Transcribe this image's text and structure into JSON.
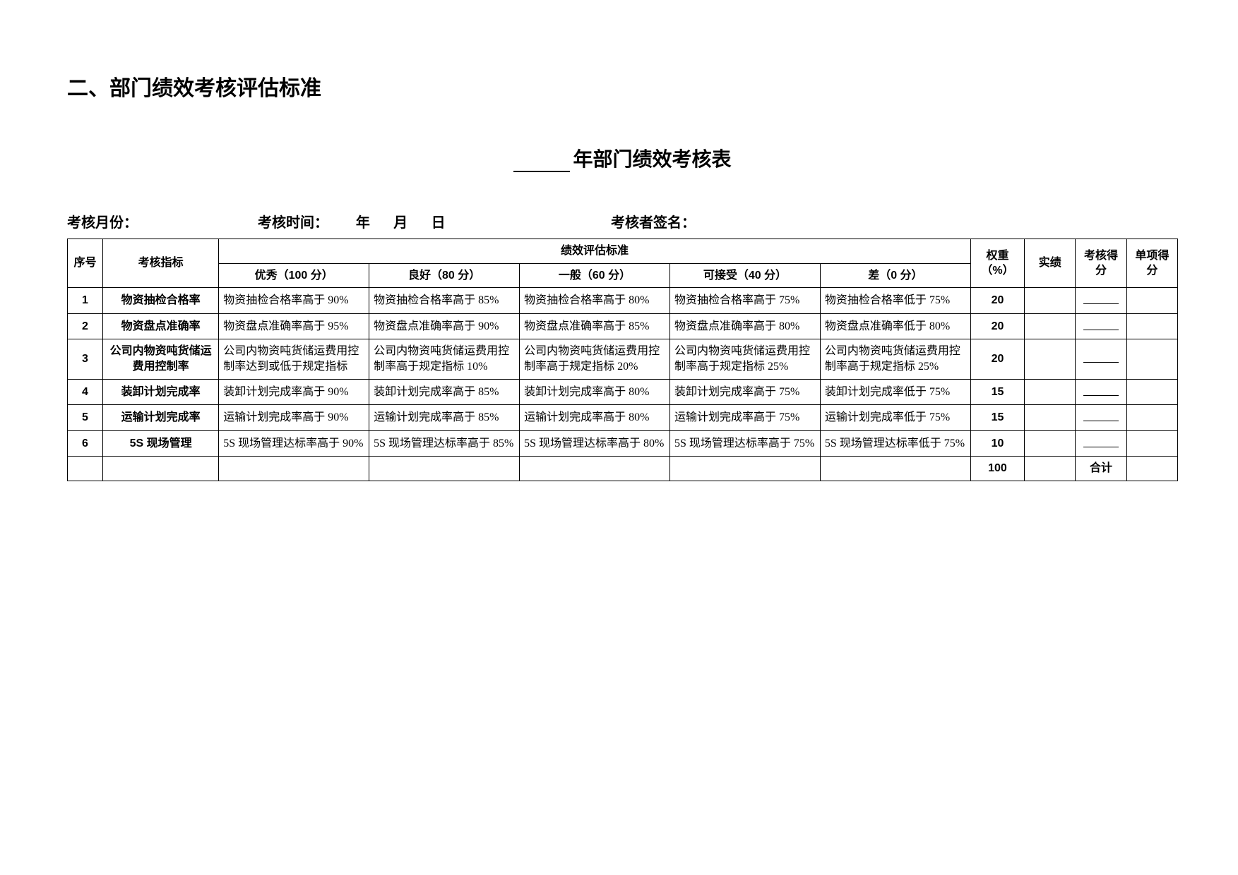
{
  "section_title": "二、部门绩效考核评估标准",
  "form_title_suffix": "年部门绩效考核表",
  "meta": {
    "month_label": "考核月份：",
    "time_label": "考核时间：",
    "year": "年",
    "month": "月",
    "day": "日",
    "signer_label": "考核者签名："
  },
  "headers": {
    "no": "序号",
    "metric": "考核指标",
    "std_group": "绩效评估标准",
    "excellent": "优秀（100 分）",
    "good": "良好（80 分）",
    "average": "一般（60 分）",
    "acceptable": "可接受（40 分）",
    "poor": "差（0 分）",
    "weight": "权重（%）",
    "actual": "实绩",
    "score": "考核得分",
    "item_score": "单项得分"
  },
  "rows": [
    {
      "no": "1",
      "metric": "物资抽检合格率",
      "excellent": "物资抽检合格率高于 90%",
      "good": "物资抽检合格率高于 85%",
      "average": "物资抽检合格率高于 80%",
      "acceptable": "物资抽检合格率高于 75%",
      "poor": "物资抽检合格率低于 75%",
      "weight": "20"
    },
    {
      "no": "2",
      "metric": "物资盘点准确率",
      "excellent": "物资盘点准确率高于 95%",
      "good": "物资盘点准确率高于 90%",
      "average": "物资盘点准确率高于 85%",
      "acceptable": "物资盘点准确率高于 80%",
      "poor": "物资盘点准确率低于 80%",
      "weight": "20"
    },
    {
      "no": "3",
      "metric": "公司内物资吨货储运费用控制率",
      "excellent": "公司内物资吨货储运费用控制率达到或低于规定指标",
      "good": "公司内物资吨货储运费用控制率高于规定指标 10%",
      "average": "公司内物资吨货储运费用控制率高于规定指标 20%",
      "acceptable": "公司内物资吨货储运费用控制率高于规定指标 25%",
      "poor": "公司内物资吨货储运费用控制率高于规定指标 25%",
      "weight": "20"
    },
    {
      "no": "4",
      "metric": "装卸计划完成率",
      "excellent": "装卸计划完成率高于 90%",
      "good": "装卸计划完成率高于 85%",
      "average": "装卸计划完成率高于 80%",
      "acceptable": "装卸计划完成率高于 75%",
      "poor": "装卸计划完成率低于 75%",
      "weight": "15"
    },
    {
      "no": "5",
      "metric": "运输计划完成率",
      "excellent": "运输计划完成率高于 90%",
      "good": "运输计划完成率高于 85%",
      "average": "运输计划完成率高于 80%",
      "acceptable": "运输计划完成率高于 75%",
      "poor": "运输计划完成率低于 75%",
      "weight": "15"
    },
    {
      "no": "6",
      "metric": "5S 现场管理",
      "excellent": "5S 现场管理达标率高于 90%",
      "good": "5S 现场管理达标率高于 85%",
      "average": "5S 现场管理达标率高于 80%",
      "acceptable": "5S 现场管理达标率高于 75%",
      "poor": "5S 现场管理达标率低于 75%",
      "weight": "10"
    }
  ],
  "total": {
    "weight": "100",
    "label": "合计"
  }
}
